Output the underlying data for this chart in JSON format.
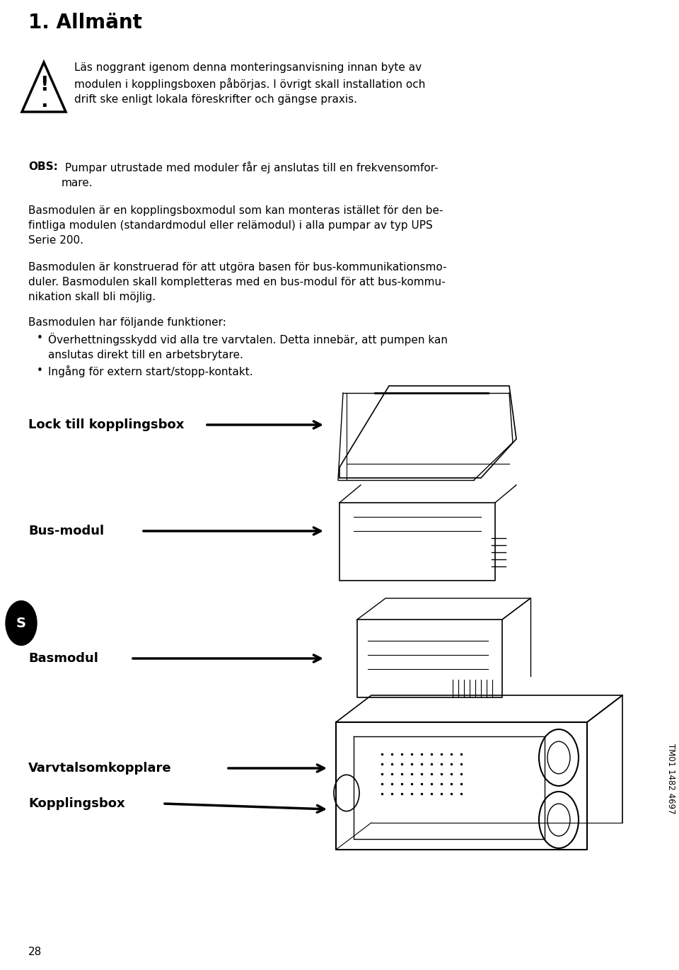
{
  "title": "1. Allmänt",
  "title_fontsize": 20,
  "body_fontsize": 11.5,
  "warning_text": "Läs noggrant igenom denna monteringsanvisning innan byte av\nmodulen i kopplingsboxen påbörjas. I övrigt skall installation och\ndrift ske enligt lokala föreskrifter och gängse praxis.",
  "obs_text": "OBS: Pumpar utrustade med moduler får ej anslutas till en frekvensomfor-\nmare.",
  "para1": "Basmodulen är en kopplingsboxmodul som kan monteras istället för den be-\nfintliga modulen (standardmodul eller relämodul) i alla pumpar av typ UPS\nSerie 200.",
  "para2": "Basmodulen är konstruerad för att utgöra basen för bus-kommunikationsmo-\nduler. Basmodulen skall kompletteras med en bus-modul för att bus-kommu-\nnikation skall bli möjlig.",
  "para3": "Basmodulen har följande funktioner:",
  "bullet1": "Överhettningsskydd vid alla tre varvtalen. Detta innebär, att pumpen kan\nanslutas direkt till en arbetsbrytare.",
  "bullet2": "Ingång för extern start/stopp-kontakt.",
  "label1": "Lock till kopplingsbox",
  "label2": "Bus-modul",
  "label3": "Basmodul",
  "label4": "Varvtalsomkopplare",
  "label5": "Kopplingsbox",
  "page_number": "28",
  "tm_number": "TM01 1482 4697",
  "s_label": "S",
  "bg_color": "#ffffff",
  "text_color": "#000000"
}
